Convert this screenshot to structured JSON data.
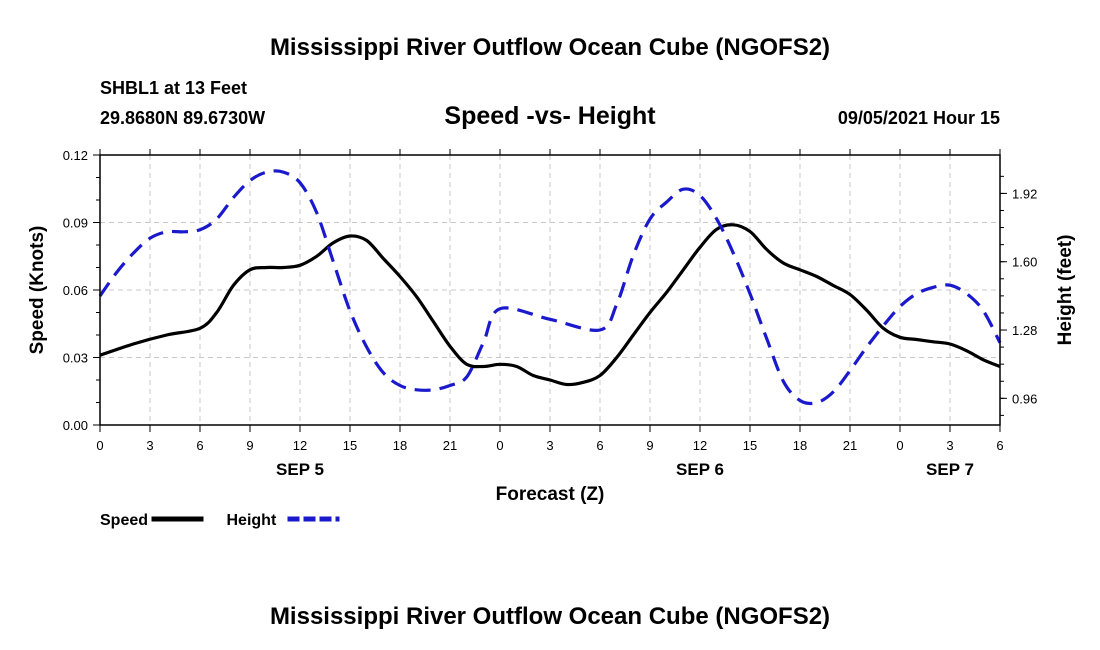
{
  "header": {
    "title": "Mississippi River Outflow Ocean Cube (NGOFS2)",
    "station": "SHBL1 at 13 Feet",
    "coords": "29.8680N  89.6730W",
    "subtitle": "Speed -vs- Height",
    "datetime": "09/05/2021 Hour 15"
  },
  "footer": {
    "title": "Mississippi River Outflow Ocean Cube (NGOFS2)"
  },
  "chart_data": {
    "type": "line",
    "title": "Speed -vs- Height",
    "xlabel": "Forecast (Z)",
    "ylabel": "Speed (Knots)",
    "y2label": "Height (feet)",
    "x_range": [
      0,
      54
    ],
    "x_tick_values": [
      0,
      3,
      6,
      9,
      12,
      15,
      18,
      21,
      24,
      27,
      30,
      33,
      36,
      39,
      42,
      45,
      48,
      51,
      54
    ],
    "x_tick_labels": [
      "0",
      "3",
      "6",
      "9",
      "12",
      "15",
      "18",
      "21",
      "0",
      "3",
      "6",
      "9",
      "12",
      "15",
      "18",
      "21",
      "0",
      "3",
      "6"
    ],
    "day_labels": [
      {
        "x": 12,
        "label": "SEP 5"
      },
      {
        "x": 36,
        "label": "SEP 6"
      },
      {
        "x": 51,
        "label": "SEP 7"
      }
    ],
    "ylim": [
      0,
      0.12
    ],
    "y_tick_values": [
      0,
      0.03,
      0.06,
      0.09,
      0.12
    ],
    "y_tick_labels": [
      "0.00",
      "0.03",
      "0.06",
      "0.09",
      "0.12"
    ],
    "y2lim": [
      0.835,
      2.1
    ],
    "y2_tick_values": [
      0.96,
      1.28,
      1.6,
      1.92
    ],
    "y2_tick_labels": [
      "0.96",
      "1.28",
      "1.60",
      "1.92"
    ],
    "grid": true,
    "series": [
      {
        "name": "Speed",
        "axis": "left",
        "color": "#000000",
        "dashed": false,
        "x": [
          0,
          2,
          4,
          6,
          7,
          8,
          9,
          10,
          11,
          12,
          13,
          14,
          15,
          16,
          17,
          18,
          19,
          20,
          21,
          22,
          23,
          24,
          25,
          26,
          27,
          28,
          29,
          30,
          31,
          32,
          33,
          34,
          35,
          36,
          37,
          38,
          39,
          40,
          41,
          42,
          43,
          44,
          45,
          46,
          47,
          48,
          49,
          50,
          51,
          52,
          53,
          54
        ],
        "values": [
          0.031,
          0.036,
          0.04,
          0.043,
          0.05,
          0.062,
          0.069,
          0.07,
          0.07,
          0.071,
          0.075,
          0.081,
          0.084,
          0.082,
          0.074,
          0.066,
          0.057,
          0.046,
          0.035,
          0.027,
          0.026,
          0.027,
          0.026,
          0.022,
          0.02,
          0.018,
          0.019,
          0.022,
          0.03,
          0.04,
          0.05,
          0.059,
          0.069,
          0.079,
          0.087,
          0.089,
          0.086,
          0.078,
          0.072,
          0.069,
          0.066,
          0.062,
          0.058,
          0.051,
          0.043,
          0.039,
          0.038,
          0.037,
          0.036,
          0.033,
          0.029,
          0.026
        ]
      },
      {
        "name": "Height",
        "axis": "right",
        "color": "#1a1acc",
        "dashed": true,
        "x": [
          0,
          1,
          2,
          3,
          4,
          5,
          6,
          7,
          8,
          9,
          10,
          11,
          12,
          13,
          14,
          15,
          16,
          17,
          18,
          19,
          20,
          21,
          22,
          23,
          24,
          27,
          30,
          31,
          32,
          33,
          34,
          35,
          36,
          37,
          38,
          39,
          40,
          41,
          42,
          43,
          44,
          45,
          46,
          47,
          48,
          49,
          50,
          51,
          52,
          53,
          54
        ],
        "values": [
          1.44,
          1.55,
          1.64,
          1.71,
          1.74,
          1.74,
          1.75,
          1.8,
          1.9,
          1.98,
          2.02,
          2.02,
          1.97,
          1.83,
          1.6,
          1.37,
          1.2,
          1.08,
          1.02,
          1.0,
          1.0,
          1.02,
          1.06,
          1.22,
          1.38,
          1.33,
          1.28,
          1.4,
          1.63,
          1.8,
          1.88,
          1.94,
          1.91,
          1.8,
          1.64,
          1.45,
          1.24,
          1.04,
          0.95,
          0.94,
          0.99,
          1.09,
          1.2,
          1.3,
          1.39,
          1.45,
          1.48,
          1.49,
          1.45,
          1.37,
          1.22
        ]
      }
    ],
    "legend": {
      "placement": "bottom-left",
      "entries": [
        {
          "label": "Speed",
          "color": "#000000",
          "dashed": false
        },
        {
          "label": "Height",
          "color": "#1a1acc",
          "dashed": true
        }
      ]
    }
  }
}
